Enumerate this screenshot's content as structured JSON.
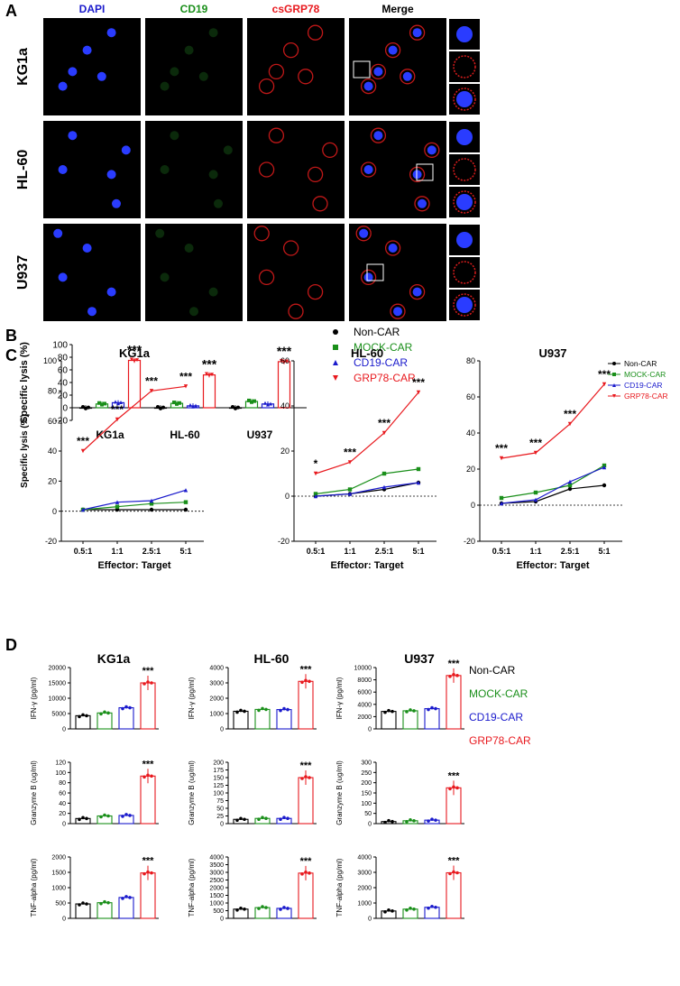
{
  "colors": {
    "noncar": "#000000",
    "mock": "#1a8f1a",
    "cd19": "#1a1acc",
    "grp78": "#e8191e"
  },
  "panel_a": {
    "letter": "A",
    "channels": [
      {
        "label": "DAPI",
        "color": "#1a1acc"
      },
      {
        "label": "CD19",
        "color": "#1a8f1a"
      },
      {
        "label": "csGRP78",
        "color": "#e8191e"
      },
      {
        "label": "Merge",
        "color": "#000000"
      }
    ],
    "rows": [
      "KG1a",
      "HL-60",
      "U937"
    ]
  },
  "chart_data": [
    {
      "panel": "B",
      "type": "bar",
      "ylabel": "Specific lysis (%)",
      "ylim": [
        -20,
        100
      ],
      "yticks": [
        -20,
        0,
        20,
        40,
        60,
        80,
        100
      ],
      "categories": [
        "KG1a",
        "HL-60",
        "U937"
      ],
      "legend": [
        "Non-CAR",
        "MOCK-CAR",
        "CD19-CAR",
        "GRP78-CAR"
      ],
      "series": [
        {
          "name": "Non-CAR",
          "values": [
            0,
            0,
            0
          ]
        },
        {
          "name": "MOCK-CAR",
          "values": [
            6,
            7,
            10
          ]
        },
        {
          "name": "CD19-CAR",
          "values": [
            8,
            3,
            6
          ]
        },
        {
          "name": "GRP78-CAR",
          "values": [
            75,
            52,
            73
          ]
        }
      ],
      "significance": [
        "***",
        "***",
        "***"
      ]
    },
    {
      "panel": "C",
      "type": "line",
      "title": "KG1a",
      "ylabel": "Specific lysis (%)",
      "xlabel": "Effector: Target",
      "x": [
        "0.5:1",
        "1:1",
        "2.5:1",
        "5:1"
      ],
      "ylim": [
        -20,
        100
      ],
      "yticks": [
        -20,
        0,
        20,
        40,
        60,
        80,
        100
      ],
      "series": [
        {
          "name": "Non-CAR",
          "values": [
            1,
            1,
            1,
            1
          ]
        },
        {
          "name": "MOCK-CAR",
          "values": [
            1,
            3,
            5,
            6
          ]
        },
        {
          "name": "CD19-CAR",
          "values": [
            1,
            6,
            7,
            14
          ]
        },
        {
          "name": "GRP78-CAR",
          "values": [
            40,
            61,
            80,
            83
          ]
        }
      ],
      "significance": [
        "***",
        "***",
        "***",
        "***"
      ]
    },
    {
      "panel": "C",
      "type": "line",
      "title": "HL-60",
      "xlabel": "Effector: Target",
      "x": [
        "0.5:1",
        "1:1",
        "2.5:1",
        "5:1"
      ],
      "ylim": [
        -20,
        60
      ],
      "yticks": [
        -20,
        0,
        20,
        40,
        60
      ],
      "series": [
        {
          "name": "Non-CAR",
          "values": [
            0,
            1,
            3,
            6
          ]
        },
        {
          "name": "MOCK-CAR",
          "values": [
            1,
            3,
            10,
            12
          ]
        },
        {
          "name": "CD19-CAR",
          "values": [
            0,
            1,
            4,
            6
          ]
        },
        {
          "name": "GRP78-CAR",
          "values": [
            10,
            15,
            28,
            46
          ]
        }
      ],
      "significance": [
        "*",
        "***",
        "***",
        "***"
      ]
    },
    {
      "panel": "C",
      "type": "line",
      "title": "U937",
      "xlabel": "Effector: Target",
      "x": [
        "0.5:1",
        "1:1",
        "2.5:1",
        "5:1"
      ],
      "ylim": [
        -20,
        80
      ],
      "yticks": [
        -20,
        0,
        20,
        40,
        60,
        80
      ],
      "legend": [
        "Non-CAR",
        "MOCK-CAR",
        "CD19-CAR",
        "GRP78-CAR"
      ],
      "series": [
        {
          "name": "Non-CAR",
          "values": [
            1,
            2,
            9,
            11
          ]
        },
        {
          "name": "MOCK-CAR",
          "values": [
            4,
            7,
            11,
            22
          ]
        },
        {
          "name": "CD19-CAR",
          "values": [
            1,
            3,
            13,
            21
          ]
        },
        {
          "name": "GRP78-CAR",
          "values": [
            26,
            29,
            45,
            67
          ]
        }
      ],
      "significance": [
        "***",
        "***",
        "***",
        "***"
      ]
    },
    {
      "panel": "D",
      "type": "bar",
      "title": "KG1a",
      "ylabel": "IFN-γ (pg/ml)",
      "ylim": [
        0,
        20000
      ],
      "yticks": [
        0,
        5000,
        10000,
        15000,
        20000
      ],
      "values": [
        4300,
        5200,
        6900,
        15000
      ],
      "significance": "***"
    },
    {
      "panel": "D",
      "type": "bar",
      "title": "HL-60",
      "ylabel": "IFN-γ (pg/ml)",
      "ylim": [
        0,
        4000
      ],
      "yticks": [
        0,
        1000,
        2000,
        3000,
        4000
      ],
      "values": [
        1150,
        1270,
        1260,
        3100
      ],
      "significance": "***"
    },
    {
      "panel": "D",
      "type": "bar",
      "title": "U937",
      "ylabel": "IFN-γ (pg/ml)",
      "ylim": [
        0,
        10000
      ],
      "yticks": [
        0,
        2000,
        4000,
        6000,
        8000,
        10000
      ],
      "values": [
        2850,
        2950,
        3300,
        8700
      ],
      "significance": "***"
    },
    {
      "panel": "D",
      "type": "bar",
      "ylabel": "Granzyme B (ug/ml)",
      "ylim": [
        0,
        120
      ],
      "yticks": [
        0,
        20,
        40,
        60,
        80,
        100,
        120
      ],
      "values": [
        10,
        15,
        16,
        93
      ],
      "significance": "***"
    },
    {
      "panel": "D",
      "type": "bar",
      "ylabel": "Granzyme B (ug/ml)",
      "ylim": [
        0,
        200
      ],
      "yticks": [
        0,
        25,
        50,
        75,
        100,
        125,
        150,
        175,
        200
      ],
      "values": [
        14,
        17,
        17,
        150
      ],
      "significance": "***"
    },
    {
      "panel": "D",
      "type": "bar",
      "ylabel": "Granzyme B (ug/ml)",
      "ylim": [
        0,
        300
      ],
      "yticks": [
        0,
        50,
        100,
        150,
        200,
        250,
        300
      ],
      "values": [
        10,
        14,
        17,
        175
      ],
      "significance": "***"
    },
    {
      "panel": "D",
      "type": "bar",
      "ylabel": "TNF-alpha (pg/ml)",
      "ylim": [
        0,
        2000
      ],
      "yticks": [
        0,
        500,
        1000,
        1500,
        2000
      ],
      "values": [
        470,
        510,
        680,
        1480
      ],
      "significance": "***"
    },
    {
      "panel": "D",
      "type": "bar",
      "ylabel": "TNF-alpha (pg/ml)",
      "ylim": [
        0,
        4000
      ],
      "yticks": [
        0,
        500,
        1000,
        1500,
        2000,
        2500,
        3000,
        3500,
        4000
      ],
      "values": [
        600,
        700,
        650,
        2950
      ],
      "significance": "***"
    },
    {
      "panel": "D",
      "type": "bar",
      "ylabel": "TNF-alpha (pg/ml)",
      "ylim": [
        0,
        4000
      ],
      "yticks": [
        0,
        1000,
        2000,
        3000,
        4000
      ],
      "values": [
        480,
        600,
        720,
        2970
      ],
      "significance": "***"
    }
  ],
  "panel_labels": {
    "b": "B",
    "c": "C",
    "d": "D"
  },
  "panel_d_legend": [
    "Non-CAR",
    "MOCK-CAR",
    "CD19-CAR",
    "GRP78-CAR"
  ]
}
